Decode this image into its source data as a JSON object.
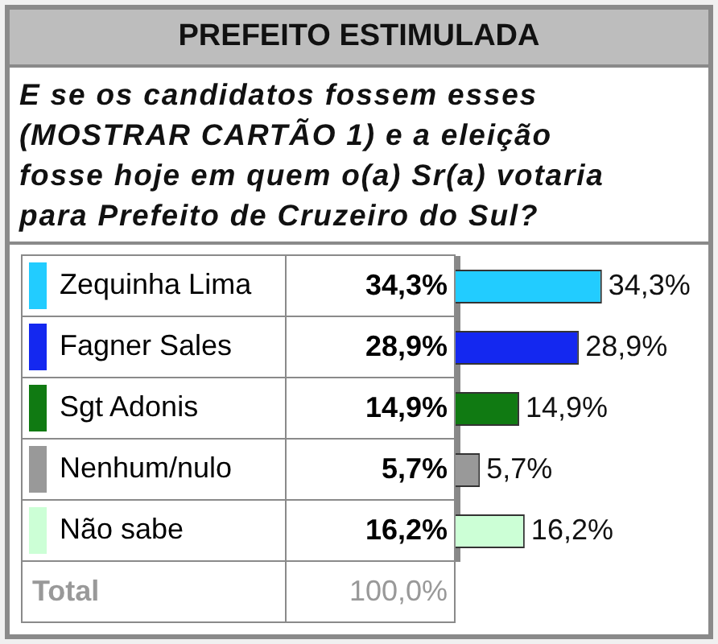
{
  "chart_data": {
    "type": "bar",
    "orientation": "horizontal",
    "title": "PREFEITO ESTIMULADA",
    "subtitle": "E se os candidatos fossem esses (MOSTRAR CARTÃO 1) e a eleição fosse hoje em quem o(a) Sr(a) votaria para Prefeito de Cruzeiro do Sul?",
    "categories": [
      "Zequinha Lima",
      "Fagner Sales",
      "Sgt Adonis",
      "Nenhum/nulo",
      "Não sabe"
    ],
    "values": [
      34.3,
      28.9,
      14.9,
      5.7,
      16.2
    ],
    "value_labels": [
      "34,3%",
      "28,9%",
      "14,9%",
      "5,7%",
      "16,2%"
    ],
    "colors": [
      "#22ccff",
      "#1428f0",
      "#107a12",
      "#999999",
      "#ccffd6"
    ],
    "annotations": [
      "Total",
      "100,0%"
    ],
    "tick_labels": false
  }
}
